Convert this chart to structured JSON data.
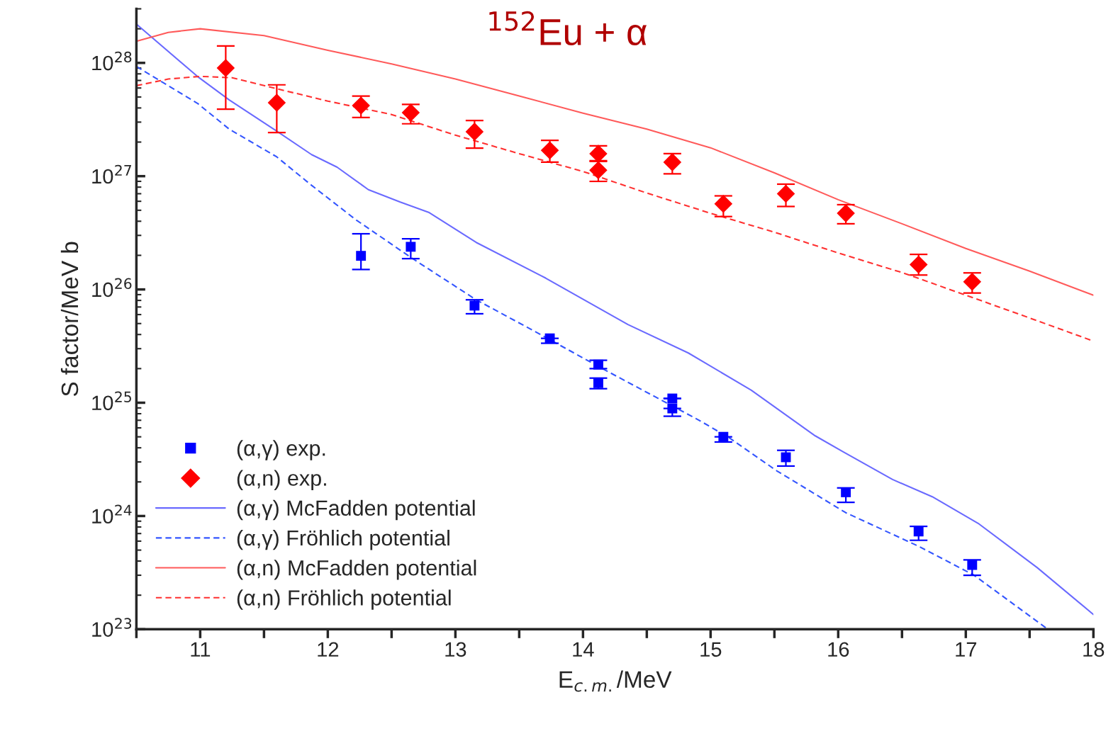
{
  "chart_data": {
    "type": "scatter",
    "title": "$^{152}$Eu + α",
    "xlabel": "E$_{c.m.}$/MeV",
    "ylabel": "S factor/MeV b",
    "log": "y",
    "xlim": [
      10.5,
      18
    ],
    "xticks": [
      {
        "value": 10.5,
        "label": null
      },
      11,
      {
        "value": 11.5,
        "label": null
      },
      12,
      {
        "value": 12.5,
        "label": null
      },
      13,
      {
        "value": 13.5,
        "label": null
      },
      14,
      {
        "value": 14.5,
        "label": null
      },
      15,
      {
        "value": 15.5,
        "label": null
      },
      16,
      {
        "value": 16.5,
        "label": null
      },
      17,
      {
        "value": 17.5,
        "label": null
      },
      18
    ],
    "ylim": [
      1e+23,
      3e+28
    ],
    "yticks": [
      {
        "value": 1e+23,
        "label": "10$^{23}$"
      },
      {
        "value": 1e+24,
        "label": "10$^{24}$"
      },
      {
        "value": 1e+25,
        "label": "10$^{25}$"
      },
      {
        "value": 1e+26,
        "label": "10$^{26}$"
      },
      {
        "value": 1e+27,
        "label": "10$^{27}$"
      },
      {
        "value": 1e+28,
        "label": "10$^{28}$"
      }
    ],
    "grid": false,
    "legend": "bottom left",
    "series": [
      {
        "name": "(α,γ) exp.",
        "marker": "square",
        "color": "#0000ff",
        "x": [
          12.26,
          12.65,
          13.15,
          13.74,
          14.12,
          14.12,
          14.7,
          14.7,
          15.1,
          15.59,
          16.06,
          16.63,
          17.05
        ],
        "values": [
          1.98e+26,
          2.38e+26,
          7.2e+25,
          3.7e+25,
          2.17e+25,
          1.49e+25,
          1.09e+25,
          8.9e+24,
          5e+24,
          3.3e+24,
          1.62e+24,
          7.3e+23,
          3.7e+23
        ],
        "errors": [
          [
            1.5e+26,
            3.1e+26
          ],
          [
            1.87e+26,
            2.8e+26
          ],
          [
            6.1e+25,
            8.1e+25
          ],
          [
            3.35e+25,
            3.7e+25
          ],
          [
            2e+25,
            2.37e+25
          ],
          [
            1.33e+25,
            1.65e+25
          ],
          null,
          [
            7.6e+24,
            8.9e+24
          ],
          [
            4.5e+24,
            5e+24
          ],
          [
            2.76e+24,
            3.8e+24
          ],
          [
            1.32e+24,
            1.77e+24
          ],
          [
            6.1e+23,
            8.1e+23
          ],
          [
            3e+23,
            4.1e+23
          ]
        ]
      },
      {
        "name": "(α,n) exp.",
        "marker": "diamond",
        "color": "#ff0000",
        "x": [
          11.2,
          11.6,
          12.26,
          12.65,
          13.15,
          13.74,
          14.12,
          14.12,
          14.7,
          15.1,
          15.59,
          16.06,
          16.63,
          17.05
        ],
        "values": [
          9e+27,
          4.45e+27,
          4.2e+27,
          3.64e+27,
          2.47e+27,
          1.69e+27,
          1.58e+27,
          1.13e+27,
          1.33e+27,
          5.7e+26,
          7e+26,
          4.7e+26,
          1.66e+26,
          1.17e+26
        ],
        "errors": [
          [
            3.9e+27,
            1.41e+28
          ],
          [
            2.43e+27,
            6.4e+27
          ],
          [
            3.3e+27,
            5.1e+27
          ],
          [
            2.9e+27,
            4.3e+27
          ],
          [
            1.77e+27,
            3.1e+27
          ],
          [
            1.33e+27,
            2.07e+27
          ],
          [
            1.35e+27,
            1.85e+27
          ],
          [
            9e+26,
            1.37e+27
          ],
          [
            1.05e+27,
            1.58e+27
          ],
          [
            4.4e+26,
            6.7e+26
          ],
          [
            5.4e+26,
            8.5e+26
          ],
          [
            3.8e+26,
            5.6e+26
          ],
          [
            1.34e+26,
            2.04e+26
          ],
          [
            9.3e+25,
            1.4e+26
          ]
        ]
      },
      {
        "name": "(α,γ) McFadden potential",
        "type": "line",
        "line_style": "solid",
        "color": "#6a6aff",
        "x": [
          10.5,
          10.978,
          11.228,
          11.6,
          11.873,
          12.073,
          12.318,
          12.568,
          12.79,
          13.163,
          13.707,
          14.352,
          14.825,
          15.319,
          15.82,
          16.037,
          16.426,
          16.737,
          17.104,
          17.56,
          18.0
        ],
        "values": [
          2.2e+28,
          7.6e+27,
          4.7e+27,
          2.5e+27,
          1.55e+27,
          1.2e+27,
          7.6e+26,
          5.9e+26,
          4.8e+26,
          2.6e+26,
          1.26e+26,
          4.9e+25,
          2.75e+25,
          1.29e+25,
          5.1e+24,
          3.7e+24,
          2.1e+24,
          1.48e+24,
          8.5e+23,
          3.5e+23,
          1.35e+23
        ]
      },
      {
        "name": "(α,γ) Fröhlich potential",
        "type": "line",
        "line_style": "dashed",
        "color": "#3355ff",
        "x": [
          10.5,
          10.978,
          11.228,
          11.6,
          11.873,
          12.223,
          12.668,
          13.163,
          13.6,
          14.152,
          14.9,
          15.147,
          15.52,
          16.059,
          16.631,
          17.065,
          17.643
        ],
        "values": [
          9.3e+27,
          4.4e+27,
          2.6e+27,
          1.48e+27,
          8.3e+26,
          4.1e+26,
          1.86e+26,
          8.1e+25,
          4.4e+25,
          2e+25,
          7.1e+24,
          4.9e+24,
          2.5e+24,
          1.07e+24,
          5.4e+23,
          3e+23,
          1e+23
        ]
      },
      {
        "name": "(α,n) McFadden potential",
        "type": "line",
        "line_style": "solid",
        "color": "#ff5a5a",
        "x": [
          10.5,
          10.75,
          11.0,
          11.5,
          12.0,
          12.5,
          13.0,
          13.5,
          14.0,
          14.5,
          15.0,
          15.5,
          16.0,
          16.5,
          17.0,
          17.5,
          18.0
        ],
        "values": [
          1.55e+28,
          1.86e+28,
          2e+28,
          1.74e+28,
          1.29e+28,
          9.8e+27,
          7.2e+27,
          5.1e+27,
          3.6e+27,
          2.6e+27,
          1.78e+27,
          1.07e+27,
          6.2e+26,
          3.8e+26,
          2.3e+26,
          1.45e+26,
          8.9e+25
        ]
      },
      {
        "name": "(α,n) Fröhlich potential",
        "type": "line",
        "line_style": "dashed",
        "color": "#ff3030",
        "x": [
          10.5,
          10.75,
          11.0,
          11.25,
          11.5,
          12.0,
          12.5,
          13.0,
          13.5,
          14.0,
          14.5,
          15.0,
          15.5,
          16.0,
          16.5,
          17.0,
          17.5,
          18.0
        ],
        "values": [
          6.3e+27,
          7.2e+27,
          7.6e+27,
          7.4e+27,
          6.3e+27,
          4.6e+27,
          3.5e+27,
          2.3e+27,
          1.58e+27,
          1.1e+27,
          7.1e+26,
          4.7e+26,
          3.2e+26,
          2.1e+26,
          1.41e+26,
          8.9e+25,
          5.6e+25,
          3.5e+25
        ]
      }
    ]
  }
}
